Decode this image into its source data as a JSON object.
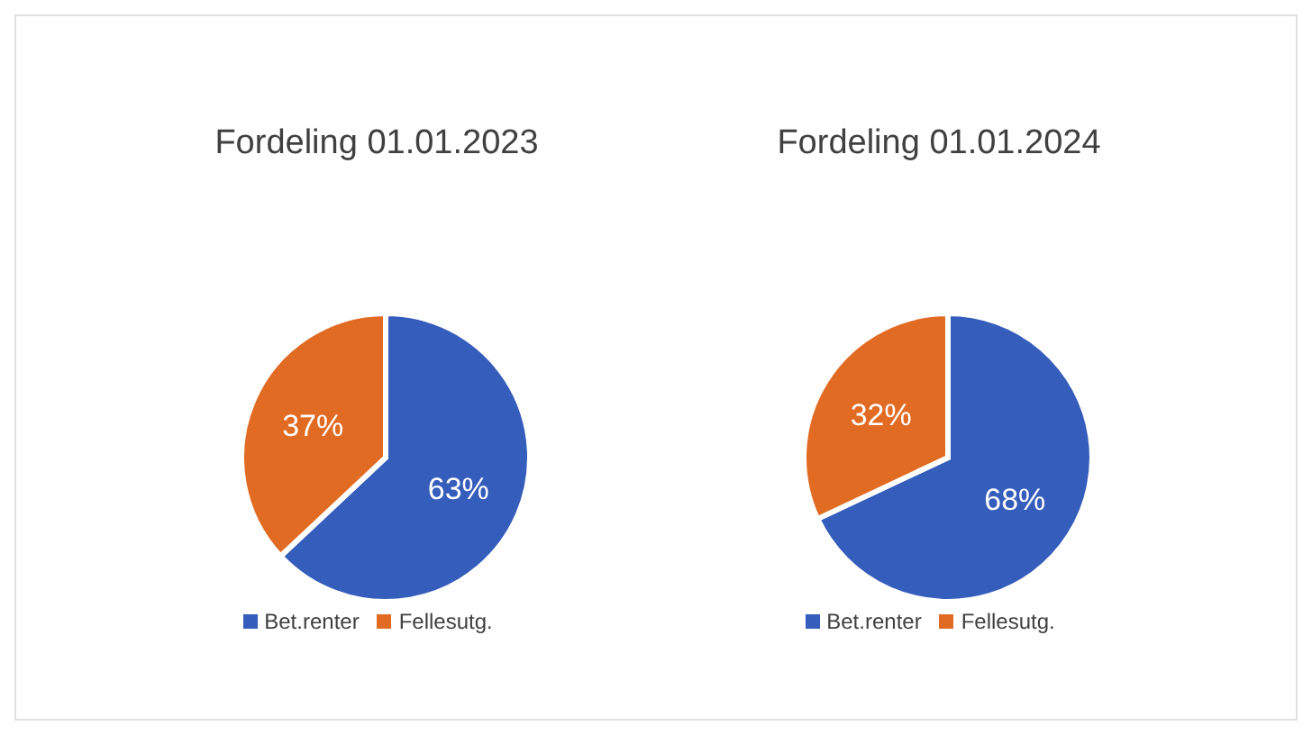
{
  "chart_data": [
    {
      "type": "pie",
      "title": "Fordeling 01.01.2023",
      "categories": [
        "Bet.renter",
        "Fellesutg."
      ],
      "values": [
        63,
        37
      ],
      "colors": [
        "#355dbb",
        "#e26b23"
      ],
      "value_labels": [
        "63%",
        "37%"
      ],
      "legend": "bottom"
    },
    {
      "type": "pie",
      "title": "Fordeling 01.01.2024",
      "categories": [
        "Bet.renter",
        "Fellesutg."
      ],
      "values": [
        68,
        32
      ],
      "colors": [
        "#355dbb",
        "#e26b23"
      ],
      "value_labels": [
        "68%",
        "32%"
      ],
      "legend": "bottom"
    }
  ]
}
